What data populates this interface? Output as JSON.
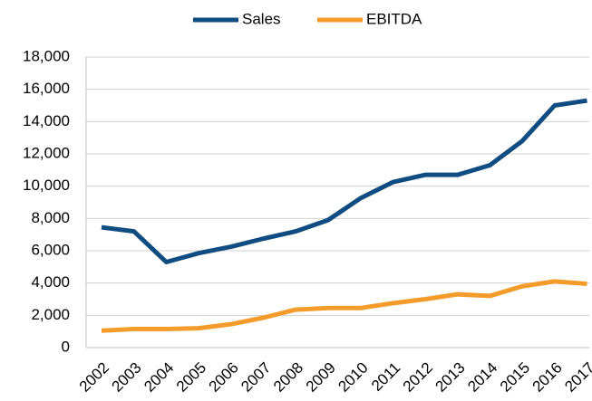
{
  "chart_data": {
    "type": "line",
    "categories": [
      "2002",
      "2003",
      "2004",
      "2005",
      "2006",
      "2007",
      "2008",
      "2009",
      "2010",
      "2011",
      "2012",
      "2013",
      "2014",
      "2015",
      "2016",
      "2017"
    ],
    "series": [
      {
        "name": "Sales",
        "color": "#0f4c81",
        "values": [
          7450,
          7200,
          5300,
          5850,
          6250,
          6750,
          7200,
          7900,
          9250,
          10250,
          10700,
          10700,
          11300,
          12800,
          15000,
          15300
        ]
      },
      {
        "name": "EBITDA",
        "color": "#f39c2b",
        "values": [
          1050,
          1150,
          1150,
          1200,
          1450,
          1850,
          2350,
          2450,
          2450,
          2750,
          3000,
          3300,
          3200,
          3800,
          4100,
          3950
        ]
      }
    ],
    "ylim": [
      0,
      18000
    ],
    "yticks": [
      0,
      {
        "value": 2000,
        "label": "2,000"
      },
      {
        "value": 4000,
        "label": "4,000"
      },
      {
        "value": 6000,
        "label": "6,000"
      },
      {
        "value": 8000,
        "label": "8,000"
      },
      {
        "value": 10000,
        "label": "10,000"
      },
      {
        "value": 12000,
        "label": "12,000"
      },
      {
        "value": 14000,
        "label": "14,000"
      },
      {
        "value": 16000,
        "label": "16,000"
      },
      {
        "value": 18000,
        "label": "18,000"
      }
    ],
    "grid": true,
    "legend": "top"
  }
}
